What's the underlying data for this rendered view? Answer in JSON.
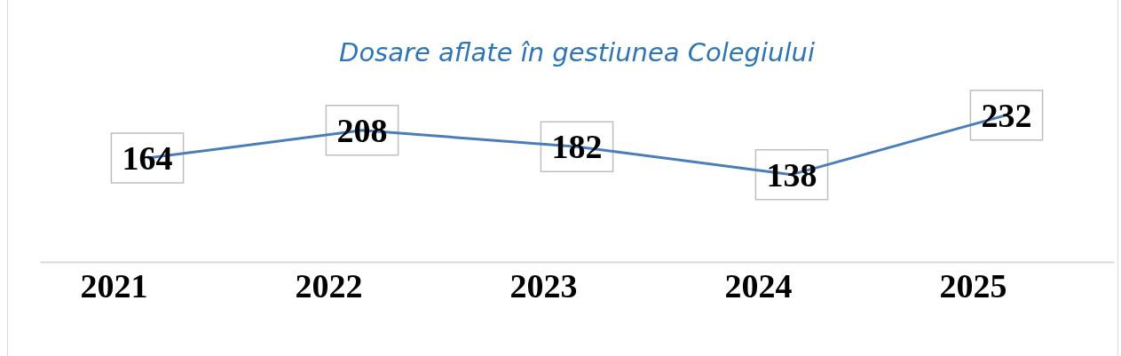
{
  "chart_data": {
    "type": "line",
    "title": "Dosare aflate în gestiunea Colegiului",
    "categories": [
      "2021",
      "2022",
      "2023",
      "2024",
      "2025"
    ],
    "series": [
      {
        "color": "#4a7ebb",
        "values": [
          164,
          208,
          182,
          138,
          232
        ]
      }
    ],
    "data_labels": true,
    "marker": "none",
    "grid": false,
    "legend": false,
    "tick_labels": "x"
  }
}
